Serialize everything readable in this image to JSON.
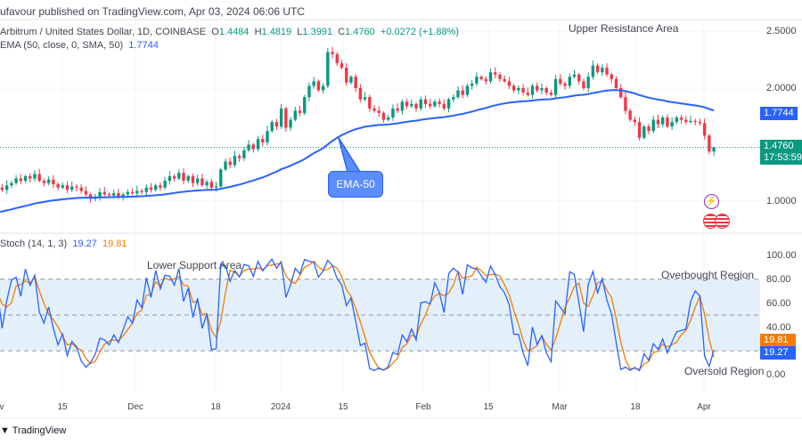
{
  "header": {
    "published": "ufavour published on TradingView.com, Apr 03, 2024 06:06 UTC"
  },
  "legend": {
    "symbol": "Arbitrum / United States Dollar, 1D, COINBASE",
    "o_label": "O",
    "o": "1.4484",
    "h_label": "H",
    "h": "1.4819",
    "l_label": "L",
    "l": "1.3991",
    "c_label": "C",
    "c": "1.4760",
    "change": "+0.0272 (+1.88%)",
    "ema_label": "EMA (50, close, 0, SMA, 50)",
    "ema_value": "1.7744"
  },
  "stoch": {
    "label": "Stoch (14, 1, 3)",
    "k": "19.27",
    "d": "19.81",
    "levels": [
      80,
      50,
      20
    ]
  },
  "price_axis": [
    "2.5000",
    "2.0000",
    "1.0000"
  ],
  "price_tags": {
    "ema": "1.7744",
    "last": "1.4760",
    "countdown": "17:53:59"
  },
  "stoch_axis": [
    "100.00",
    "80.00",
    "60.00",
    "40.00",
    "20.00",
    "0.00"
  ],
  "stoch_tags": {
    "d": "19.81",
    "k": "19.27"
  },
  "time_axis": [
    "v",
    "15",
    "Dec",
    "18",
    "2024",
    "15",
    "Feb",
    "15",
    "Mar",
    "18",
    "Apr"
  ],
  "annotations": {
    "upper": "Upper Resistance Area",
    "lower": "Lower Support Area",
    "overbought": "Overbought Region",
    "oversold": "Oversold Region",
    "ema_callout": "EMA-50"
  },
  "footer": {
    "brand": "TradingView"
  },
  "colors": {
    "up": "#089981",
    "down": "#f23645",
    "ema": "#2962ff",
    "k": "#2962ff",
    "d": "#f57c00",
    "band": "#e3f0fc"
  },
  "icons": [
    "lightning-event-icon",
    "us-flag-event-icon"
  ],
  "chart_data": {
    "type": "candlestick",
    "interval": "1D",
    "closes": [
      1.1,
      1.12,
      1.1,
      1.14,
      1.16,
      1.2,
      1.18,
      1.22,
      1.2,
      1.24,
      1.18,
      1.16,
      1.19,
      1.15,
      1.12,
      1.14,
      1.1,
      1.13,
      1.12,
      1.09,
      1.06,
      1.02,
      1.04,
      1.08,
      1.06,
      1.05,
      1.07,
      1.04,
      1.06,
      1.08,
      1.07,
      1.09,
      1.08,
      1.12,
      1.1,
      1.14,
      1.12,
      1.18,
      1.22,
      1.2,
      1.25,
      1.18,
      1.22,
      1.16,
      1.2,
      1.14,
      1.17,
      1.12,
      1.13,
      1.28,
      1.35,
      1.32,
      1.4,
      1.38,
      1.45,
      1.5,
      1.46,
      1.55,
      1.52,
      1.62,
      1.7,
      1.66,
      1.82,
      1.65,
      1.72,
      1.8,
      1.78,
      1.92,
      2.02,
      2.06,
      1.98,
      2.02,
      2.32,
      2.3,
      2.22,
      2.18,
      2.05,
      2.1,
      2.0,
      1.9,
      1.92,
      1.82,
      1.8,
      1.78,
      1.72,
      1.74,
      1.82,
      1.8,
      1.88,
      1.84,
      1.86,
      1.82,
      1.9,
      1.86,
      1.84,
      1.88,
      1.86,
      1.82,
      1.9,
      1.92,
      1.98,
      1.94,
      2.02,
      2.04,
      2.1,
      2.08,
      2.06,
      2.14,
      2.12,
      2.08,
      2.06,
      2.02,
      1.98,
      2.0,
      1.96,
      1.94,
      2.02,
      1.98,
      2.0,
      1.96,
      1.94,
      2.08,
      2.04,
      2.02,
      2.1,
      2.12,
      2.06,
      2.0,
      2.1,
      2.2,
      2.14,
      2.18,
      2.12,
      2.08,
      2.0,
      1.92,
      1.8,
      1.72,
      1.7,
      1.56,
      1.66,
      1.62,
      1.72,
      1.68,
      1.74,
      1.66,
      1.7,
      1.74,
      1.72,
      1.7,
      1.71,
      1.7,
      1.69,
      1.58,
      1.44,
      1.476
    ],
    "last_ohlc": {
      "open": 1.4484,
      "high": 1.4819,
      "low": 1.3991,
      "close": 1.476
    },
    "ema50_last": 1.7744,
    "stoch_last": {
      "k": 19.27,
      "d": 19.81
    },
    "price_range": [
      0.85,
      2.55
    ],
    "stoch_range": [
      0,
      100
    ]
  }
}
